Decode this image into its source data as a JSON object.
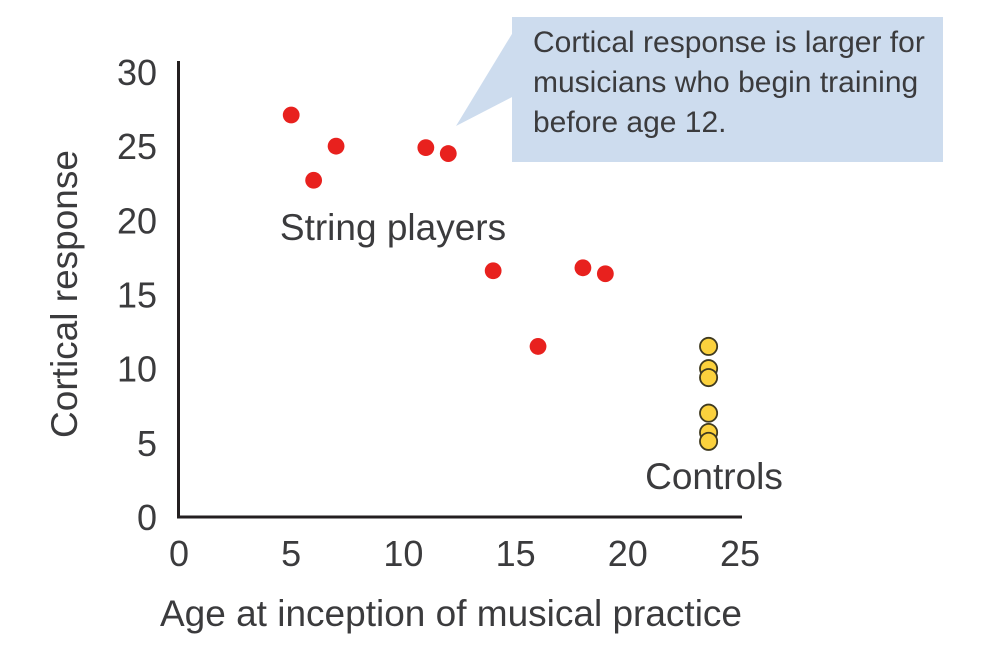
{
  "chart_data": {
    "type": "scatter",
    "title": "",
    "xlabel": "Age at inception of musical practice",
    "ylabel": "Cortical response",
    "xlim": [
      0,
      25
    ],
    "ylim": [
      0,
      30
    ],
    "xticks": [
      0,
      5,
      10,
      15,
      20,
      25
    ],
    "yticks": [
      0,
      5,
      10,
      15,
      20,
      25,
      30
    ],
    "grid": false,
    "legend": "inline-text-labels",
    "axis_color": "#231f20",
    "tick_color": "#3b3b3d",
    "series": [
      {
        "name": "String players",
        "marker_color": "#e8211e",
        "marker_outline": "none",
        "points": [
          [
            5,
            27.1
          ],
          [
            6,
            22.7
          ],
          [
            7,
            25.0
          ],
          [
            11,
            24.9
          ],
          [
            12,
            24.5
          ],
          [
            14,
            16.6
          ],
          [
            16,
            11.5
          ],
          [
            18,
            16.8
          ],
          [
            19,
            16.4
          ]
        ]
      },
      {
        "name": "Controls",
        "marker_color": "#fbd13d",
        "marker_outline": "#3f3a20",
        "points": [
          [
            23.6,
            11.5
          ],
          [
            23.6,
            10.0
          ],
          [
            23.6,
            9.4
          ],
          [
            23.6,
            7.0
          ],
          [
            23.6,
            5.7
          ],
          [
            23.6,
            5.1
          ]
        ]
      }
    ],
    "annotation": {
      "text": "Cortical response is larger for\nmusicians who begin training\nbefore age 12.",
      "bg_color": "#cddcee",
      "text_color": "#3b3b3d",
      "points_to": [
        12,
        24.5
      ]
    }
  }
}
